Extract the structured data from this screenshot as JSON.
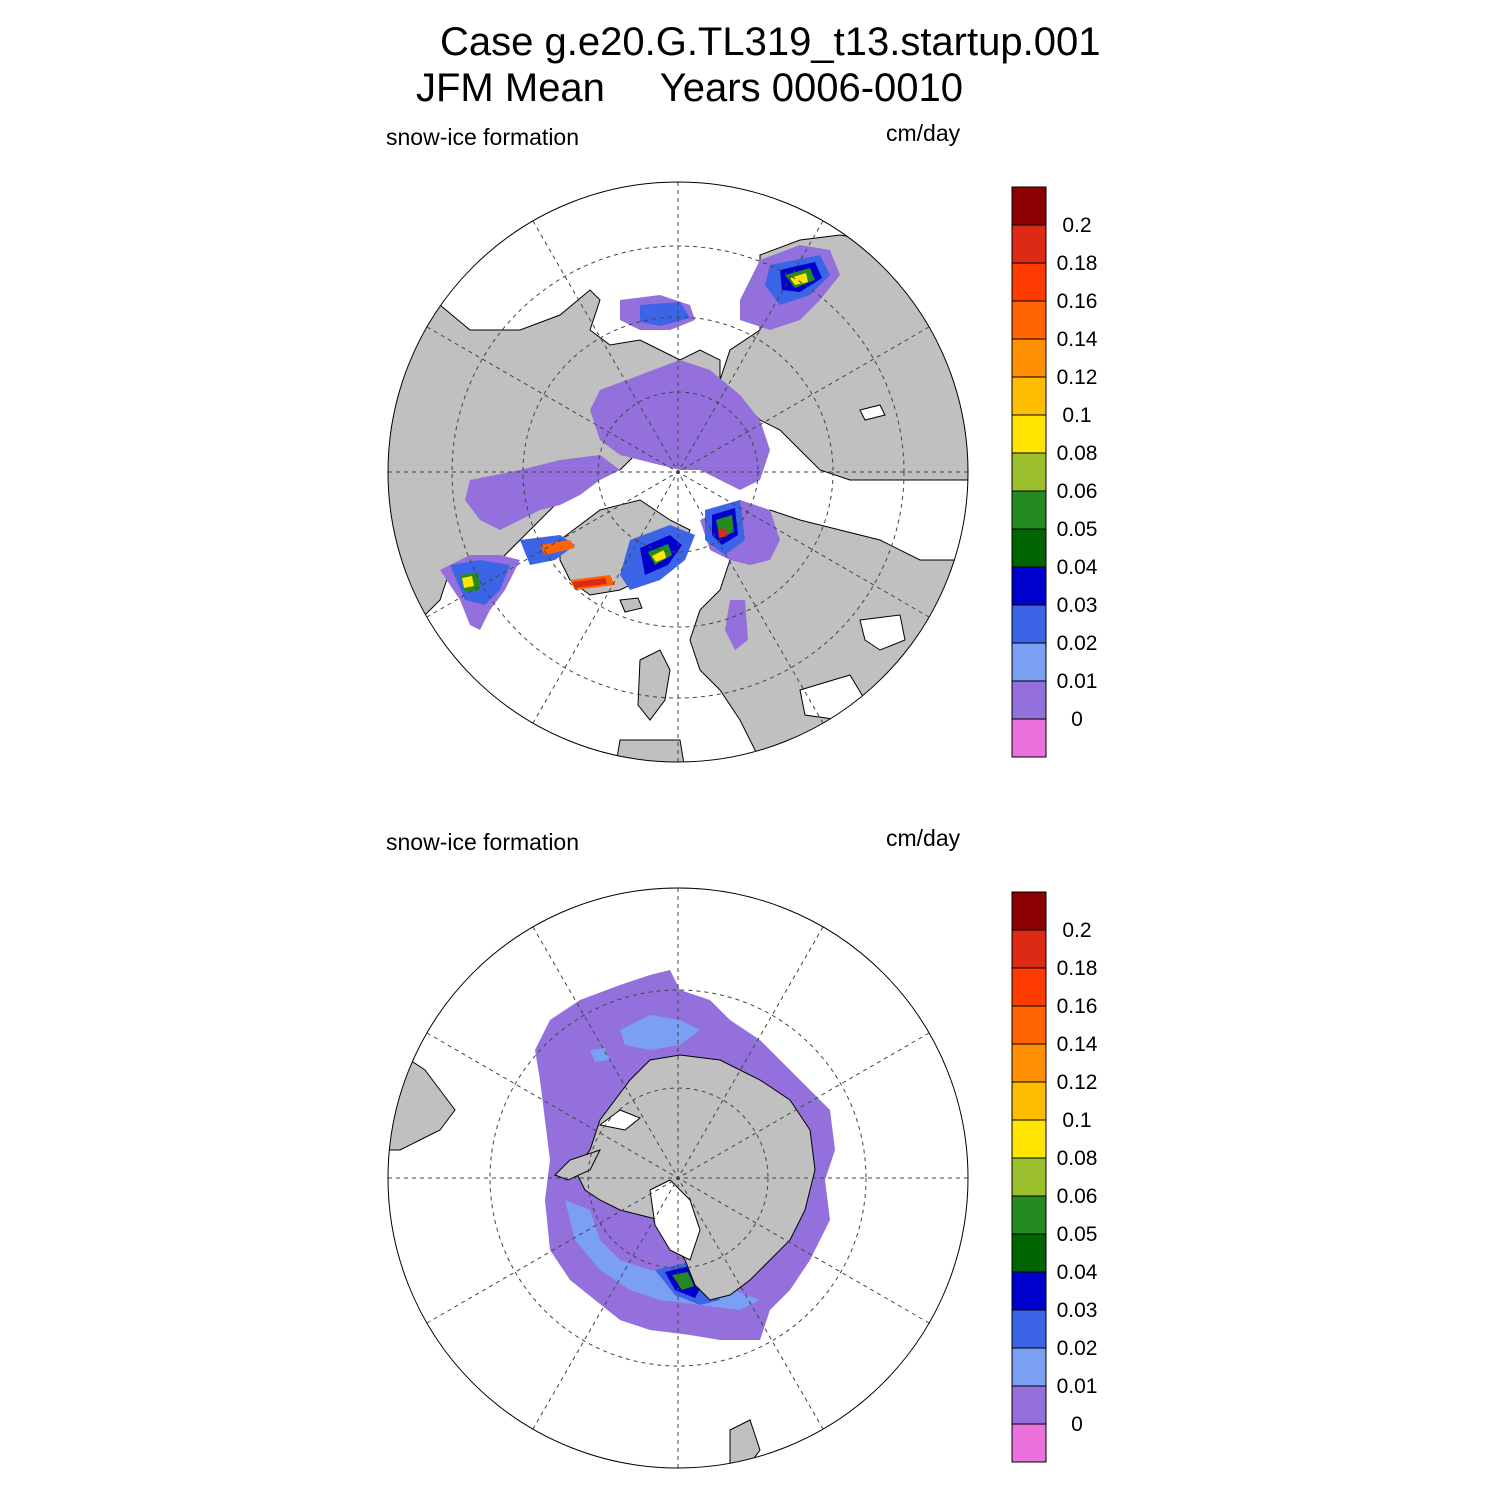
{
  "title": {
    "line1": "Case g.e20.G.TL319_t13.startup.001",
    "line2": "JFM Mean     Years 0006-0010"
  },
  "panels": [
    {
      "id": "north",
      "variable": "snow-ice formation",
      "units": "cm/day"
    },
    {
      "id": "south",
      "variable": "snow-ice formation",
      "units": "cm/day"
    }
  ],
  "colorbar": {
    "labels": [
      "0.2",
      "0.18",
      "0.16",
      "0.14",
      "0.12",
      "0.1",
      "0.08",
      "0.06",
      "0.05",
      "0.04",
      "0.03",
      "0.02",
      "0.01",
      "0"
    ],
    "colors": [
      "#8b0000",
      "#dd2a15",
      "#ff3b00",
      "#ff6400",
      "#ff8e00",
      "#ffbd00",
      "#ffe500",
      "#9cbf2d",
      "#238b22",
      "#006400",
      "#0000cd",
      "#3c64e6",
      "#7b9ff3",
      "#9370db",
      "#ea70dc"
    ]
  },
  "colors": {
    "land": "#c0c0c0",
    "ocean": "#ffffff"
  }
}
